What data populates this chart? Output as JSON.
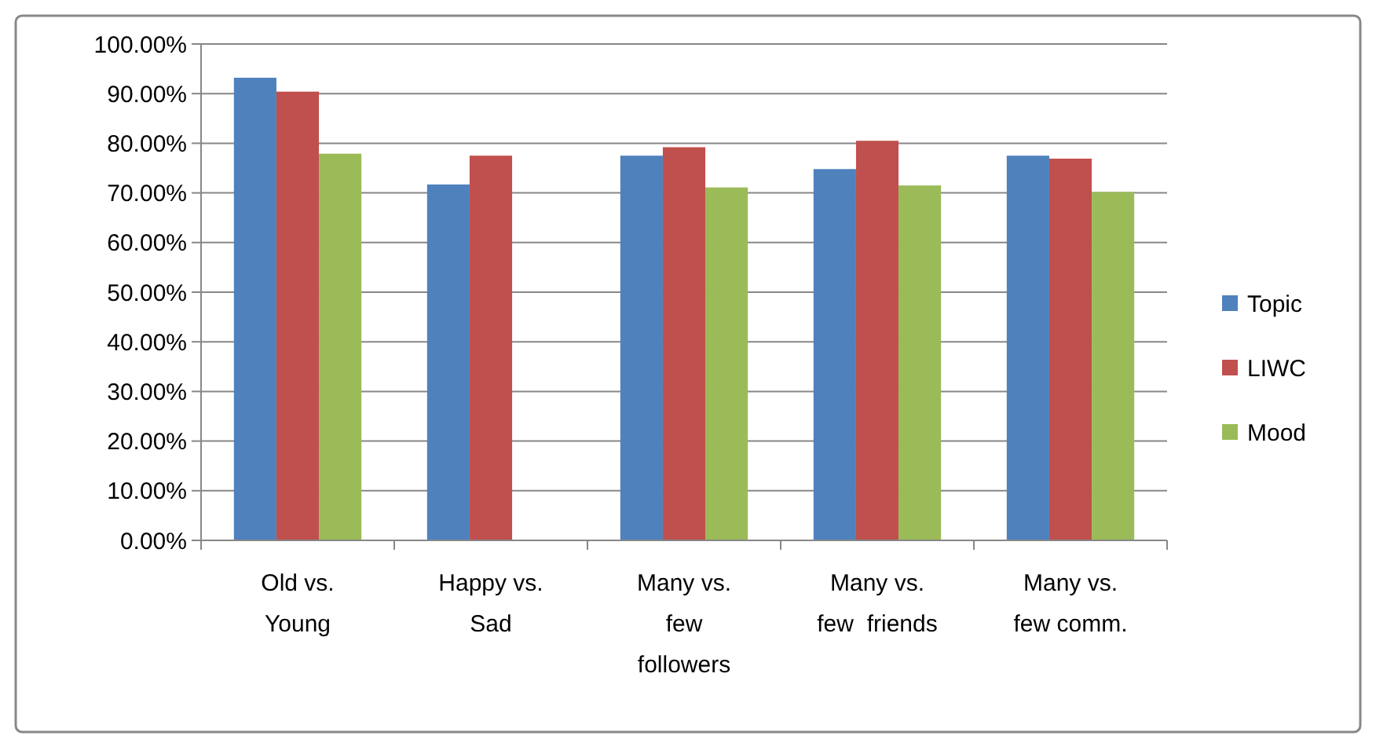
{
  "chart_data": {
    "type": "bar",
    "categories": [
      "Old vs.\nYoung",
      "Happy vs.\nSad",
      "Many vs.\nfew\nfollowers",
      "Many vs.\nfew  friends",
      "Many vs.\nfew comm."
    ],
    "series": [
      {
        "name": "Topic",
        "color": "#4f81bd",
        "values": [
          93.2,
          71.7,
          77.5,
          74.8,
          77.5
        ]
      },
      {
        "name": "LIWC",
        "color": "#c0504d",
        "values": [
          90.4,
          77.5,
          79.2,
          80.5,
          76.9
        ]
      },
      {
        "name": "Mood",
        "color": "#9bbb59",
        "values": [
          77.9,
          null,
          71.1,
          71.5,
          70.2
        ]
      }
    ],
    "ylim": [
      0,
      100
    ],
    "yticks": [
      {
        "value": 0,
        "label": "0.00%"
      },
      {
        "value": 10,
        "label": "10.00%"
      },
      {
        "value": 20,
        "label": "20.00%"
      },
      {
        "value": 30,
        "label": "30.00%"
      },
      {
        "value": 40,
        "label": "40.00%"
      },
      {
        "value": 50,
        "label": "50.00%"
      },
      {
        "value": 60,
        "label": "60.00%"
      },
      {
        "value": 70,
        "label": "70.00%"
      },
      {
        "value": 80,
        "label": "80.00%"
      },
      {
        "value": 90,
        "label": "90.00%"
      },
      {
        "value": 100,
        "label": "100.00%"
      }
    ],
    "grid": "y",
    "legend": "right"
  }
}
